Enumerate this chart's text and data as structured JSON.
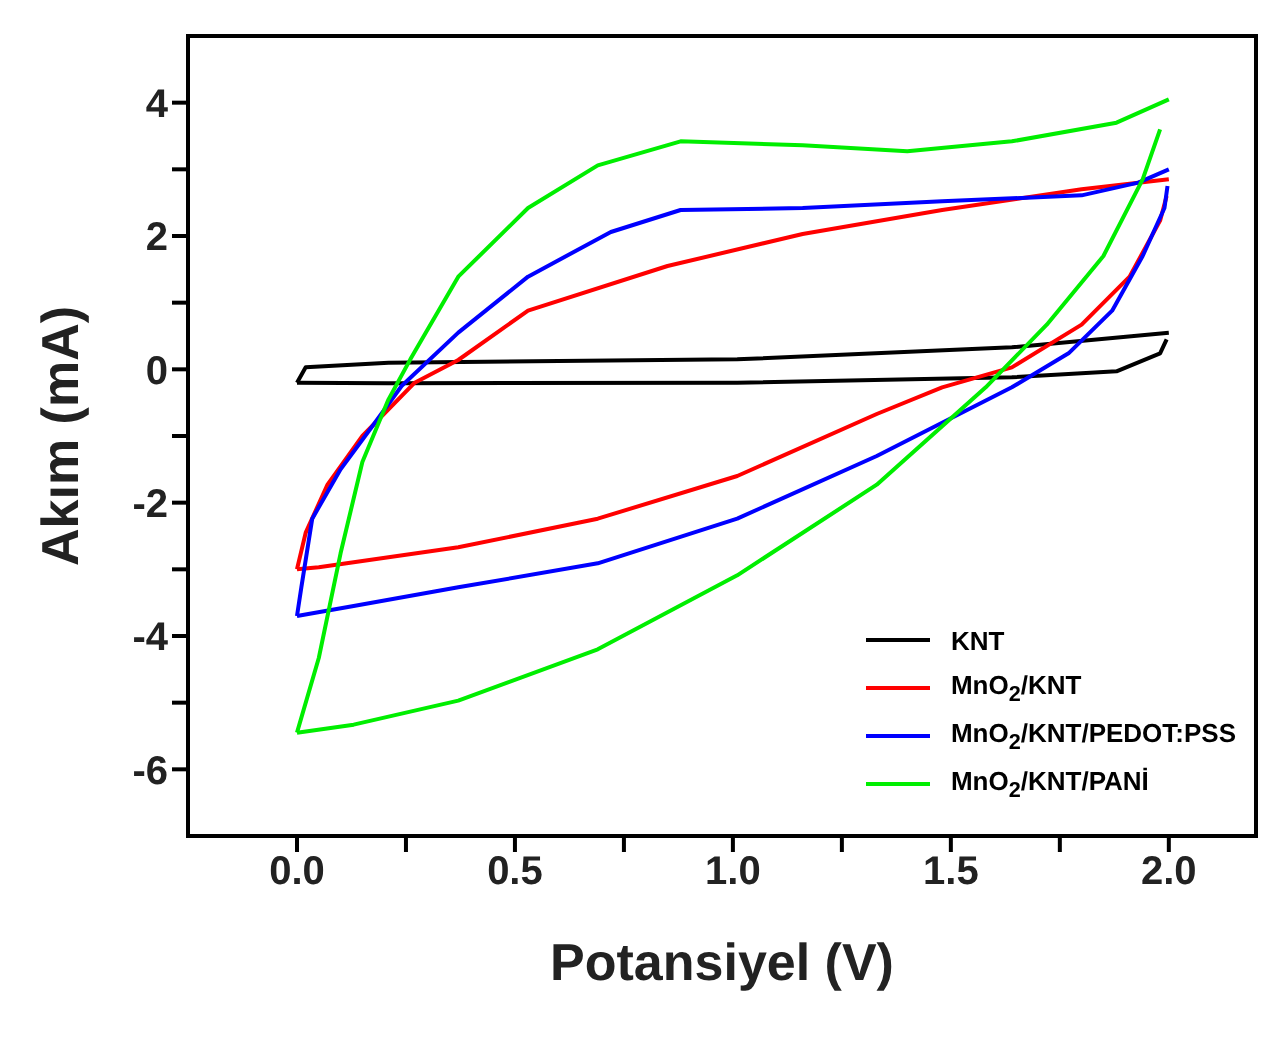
{
  "chart_data": {
    "type": "line",
    "xlabel": "Potansiyel (V)",
    "ylabel": "Akım (mA)",
    "xlim": [
      -0.25,
      2.2
    ],
    "ylim": [
      -7,
      5
    ],
    "xticks": [
      {
        "value": 0,
        "label": "0.0"
      },
      {
        "value": 0.25,
        "label": null
      },
      {
        "value": 0.5,
        "label": "0.5"
      },
      {
        "value": 0.75,
        "label": null
      },
      {
        "value": 1,
        "label": "1.0"
      },
      {
        "value": 1.25,
        "label": null
      },
      {
        "value": 1.5,
        "label": "1.5"
      },
      {
        "value": 1.75,
        "label": null
      },
      {
        "value": 2,
        "label": "2.0"
      }
    ],
    "yticks": [
      -6,
      {
        "value": -5,
        "label": null
      },
      -4,
      {
        "value": -3,
        "label": null
      },
      -2,
      {
        "value": -1,
        "label": null
      },
      0,
      {
        "value": 1,
        "label": null
      },
      2,
      {
        "value": 3,
        "label": null
      },
      4
    ],
    "legend": "bottom right",
    "series": [
      {
        "name": "KNT",
        "color": "#000000",
        "x": [
          0,
          0.02,
          0.21,
          1.01,
          1.64,
          2.0
        ],
        "values": [
          -0.2,
          0.03,
          0.1,
          0.15,
          0.33,
          0.55
        ]
      },
      {
        "color": "#000000",
        "x": [
          0,
          0.21,
          1.01,
          1.64,
          1.88,
          1.98,
          1.995
        ],
        "values": [
          -0.2,
          -0.21,
          -0.2,
          -0.12,
          -0.03,
          0.24,
          0.45
        ]
      },
      {
        "name": "MnO$_{2}$/KNT",
        "color": "#ff0000",
        "x": [
          0,
          0.02,
          0.07,
          0.15,
          0.27,
          0.37,
          0.53,
          0.85,
          1.16,
          1.48,
          1.8,
          2.0
        ],
        "values": [
          -3.0,
          -2.45,
          -1.73,
          -1.0,
          -0.2,
          0.14,
          0.88,
          1.55,
          2.03,
          2.39,
          2.7,
          2.85
        ]
      },
      {
        "color": "#ff0000",
        "x": [
          0,
          0.05,
          0.37,
          0.69,
          1.01,
          1.33,
          1.48,
          1.64,
          1.8,
          1.91,
          1.98,
          1.995
        ],
        "values": [
          -3.0,
          -2.97,
          -2.67,
          -2.24,
          -1.6,
          -0.67,
          -0.27,
          0.03,
          0.67,
          1.39,
          2.23,
          2.6
        ]
      },
      {
        "name": "MnO$_{2}$/KNT/PEDOT:PSS",
        "color": "#0000ff",
        "x": [
          0,
          0.01,
          0.035,
          0.1,
          0.18,
          0.24,
          0.37,
          0.53,
          0.72,
          0.88,
          1.16,
          1.48,
          1.8,
          1.93,
          2.0
        ],
        "values": [
          -3.7,
          -3.27,
          -2.24,
          -1.5,
          -0.79,
          -0.25,
          0.55,
          1.39,
          2.06,
          2.39,
          2.42,
          2.52,
          2.61,
          2.8,
          3.0
        ]
      },
      {
        "color": "#0000ff",
        "x": [
          0,
          0.13,
          0.37,
          0.69,
          1.01,
          1.33,
          1.64,
          1.77,
          1.87,
          1.94,
          1.99,
          1.997
        ],
        "values": [
          -3.7,
          -3.55,
          -3.27,
          -2.91,
          -2.24,
          -1.3,
          -0.27,
          0.24,
          0.88,
          1.7,
          2.42,
          2.75
        ]
      },
      {
        "name": "MnO$_{2}$/KNT/PANİ",
        "color": "#00ee00",
        "x": [
          0,
          0.05,
          0.1,
          0.15,
          0.21,
          0.26,
          0.37,
          0.53,
          0.69,
          0.88,
          1.16,
          1.4,
          1.64,
          1.88,
          2.0
        ],
        "values": [
          -5.45,
          -4.33,
          -2.76,
          -1.39,
          -0.45,
          0.15,
          1.39,
          2.42,
          3.06,
          3.42,
          3.36,
          3.27,
          3.42,
          3.7,
          4.05
        ]
      },
      {
        "color": "#00ee00",
        "x": [
          0,
          0.13,
          0.37,
          0.69,
          1.01,
          1.33,
          1.58,
          1.72,
          1.85,
          1.94,
          1.98
        ],
        "values": [
          -5.45,
          -5.33,
          -4.97,
          -4.2,
          -3.09,
          -1.73,
          -0.27,
          0.67,
          1.7,
          2.85,
          3.6
        ]
      }
    ]
  }
}
